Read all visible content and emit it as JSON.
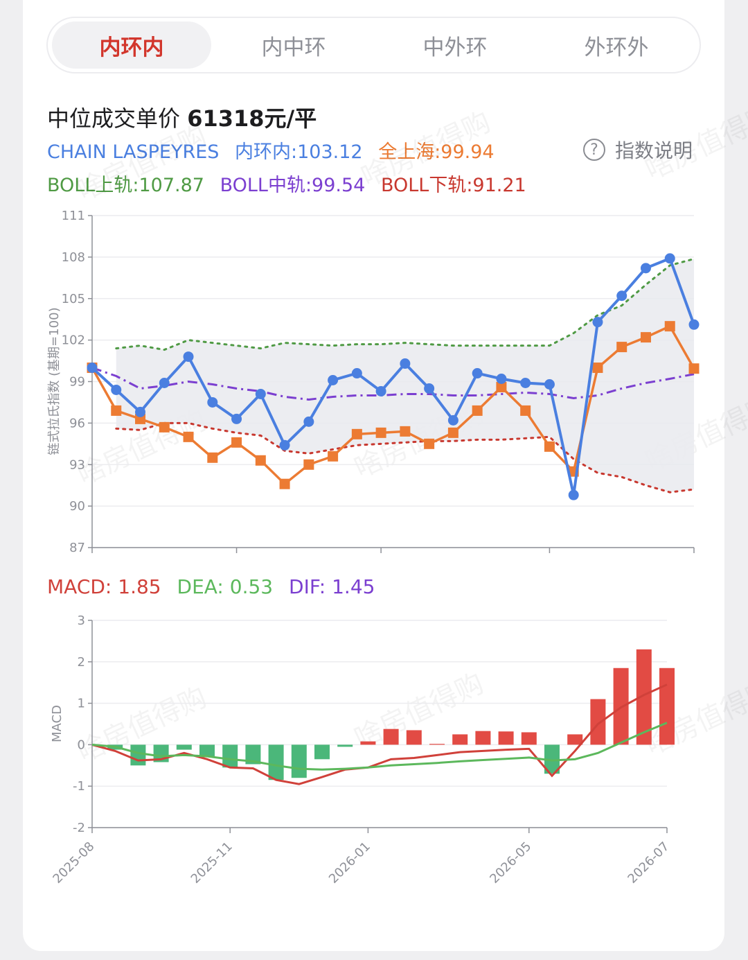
{
  "tabs": [
    "内环内",
    "内中环",
    "中外环",
    "外环外"
  ],
  "active_tab": 0,
  "price": {
    "label": "中位成交单价",
    "value": "61318元/平"
  },
  "legend": {
    "chain": "CHAIN LASPEYRES",
    "inner": "内环内:103.12",
    "shanghai": "全上海:99.94",
    "help": "指数说明",
    "boll_upper": "BOLL上轨:107.87",
    "boll_mid": "BOLL中轨:99.54",
    "boll_lower": "BOLL下轨:91.21"
  },
  "macd_legend": {
    "macd": "MACD: 1.85",
    "dea": "DEA: 0.53",
    "dif": "DIF: 1.45"
  },
  "watermark_text": "啥房值得购",
  "colors": {
    "blue": "#4a7fe0",
    "orange": "#ec7b33",
    "green": "#4f9a44",
    "purple": "#7b3fd0",
    "red": "#c8382f",
    "bar_red": "#e24b44",
    "bar_green": "#4bb77a",
    "dif_line": "#d0413a",
    "dea_line": "#5cb85c"
  },
  "chart_data": [
    {
      "type": "line",
      "ylabel": "链式拉氏指数 (基期=100)",
      "ylim": [
        87,
        111
      ],
      "yticks": [
        87,
        90,
        93,
        96,
        99,
        102,
        105,
        108,
        111
      ],
      "x_count": 26,
      "series": [
        {
          "name": "内环内",
          "values": [
            100,
            98.4,
            96.8,
            98.9,
            100.8,
            97.5,
            96.3,
            98.1,
            94.4,
            96.1,
            99.1,
            99.6,
            98.3,
            100.3,
            98.5,
            96.2,
            99.6,
            99.2,
            98.9,
            98.8,
            90.8,
            103.3,
            105.2,
            107.2,
            107.9,
            103.12
          ]
        },
        {
          "name": "全上海",
          "values": [
            100,
            96.9,
            96.3,
            95.7,
            95.0,
            93.5,
            94.6,
            93.3,
            91.6,
            93.0,
            93.6,
            95.2,
            95.3,
            95.4,
            94.5,
            95.3,
            96.9,
            98.6,
            96.9,
            94.3,
            92.5,
            100.0,
            101.5,
            102.2,
            103.0,
            99.94
          ]
        },
        {
          "name": "BOLL上轨",
          "values": [
            null,
            101.4,
            101.6,
            101.3,
            102.0,
            101.8,
            101.6,
            101.4,
            101.8,
            101.7,
            101.6,
            101.7,
            101.7,
            101.8,
            101.7,
            101.6,
            101.6,
            101.6,
            101.6,
            101.6,
            102.5,
            103.8,
            104.5,
            106.0,
            107.4,
            107.87
          ]
        },
        {
          "name": "BOLL中轨",
          "values": [
            100,
            99.4,
            98.5,
            98.7,
            99.0,
            98.8,
            98.5,
            98.3,
            97.9,
            97.7,
            97.9,
            98.0,
            98.0,
            98.1,
            98.1,
            98.0,
            98.0,
            98.1,
            98.2,
            98.1,
            97.8,
            98.0,
            98.5,
            98.9,
            99.2,
            99.54
          ]
        },
        {
          "name": "BOLL下轨",
          "values": [
            null,
            95.6,
            95.5,
            96.0,
            96.0,
            95.6,
            95.3,
            95.1,
            94.0,
            93.8,
            94.1,
            94.4,
            94.5,
            94.6,
            94.7,
            94.7,
            94.8,
            94.8,
            94.9,
            95.0,
            93.4,
            92.4,
            92.1,
            91.5,
            91.0,
            91.21
          ]
        }
      ]
    },
    {
      "type": "bar",
      "ylabel": "MACD",
      "ylim": [
        -2,
        3
      ],
      "yticks": [
        -2,
        -1,
        0,
        1,
        2,
        3
      ],
      "x_tick_labels": [
        "2025-08",
        "2025-11",
        "2026-01",
        "2026-05",
        "2026-07"
      ],
      "x_tick_index": [
        0,
        6,
        12,
        19,
        25
      ],
      "x_count": 26,
      "series": [
        {
          "name": "MACD",
          "values": [
            0,
            -0.12,
            -0.5,
            -0.42,
            -0.12,
            -0.3,
            -0.55,
            -0.47,
            -0.85,
            -0.8,
            -0.35,
            -0.05,
            0.08,
            0.38,
            0.35,
            0.02,
            0.25,
            0.33,
            0.32,
            0.3,
            -0.7,
            0.25,
            1.1,
            1.85,
            2.3,
            1.85
          ]
        },
        {
          "name": "DIF",
          "values": [
            0,
            -0.15,
            -0.38,
            -0.35,
            -0.2,
            -0.35,
            -0.55,
            -0.57,
            -0.85,
            -0.95,
            -0.78,
            -0.6,
            -0.55,
            -0.35,
            -0.32,
            -0.25,
            -0.18,
            -0.15,
            -0.12,
            -0.1,
            -0.75,
            -0.15,
            0.5,
            0.9,
            1.2,
            1.45
          ]
        },
        {
          "name": "DEA",
          "values": [
            0,
            -0.05,
            -0.2,
            -0.28,
            -0.25,
            -0.28,
            -0.35,
            -0.4,
            -0.5,
            -0.58,
            -0.6,
            -0.58,
            -0.55,
            -0.5,
            -0.47,
            -0.44,
            -0.4,
            -0.37,
            -0.34,
            -0.31,
            -0.38,
            -0.35,
            -0.2,
            0.05,
            0.3,
            0.53
          ]
        }
      ]
    }
  ]
}
